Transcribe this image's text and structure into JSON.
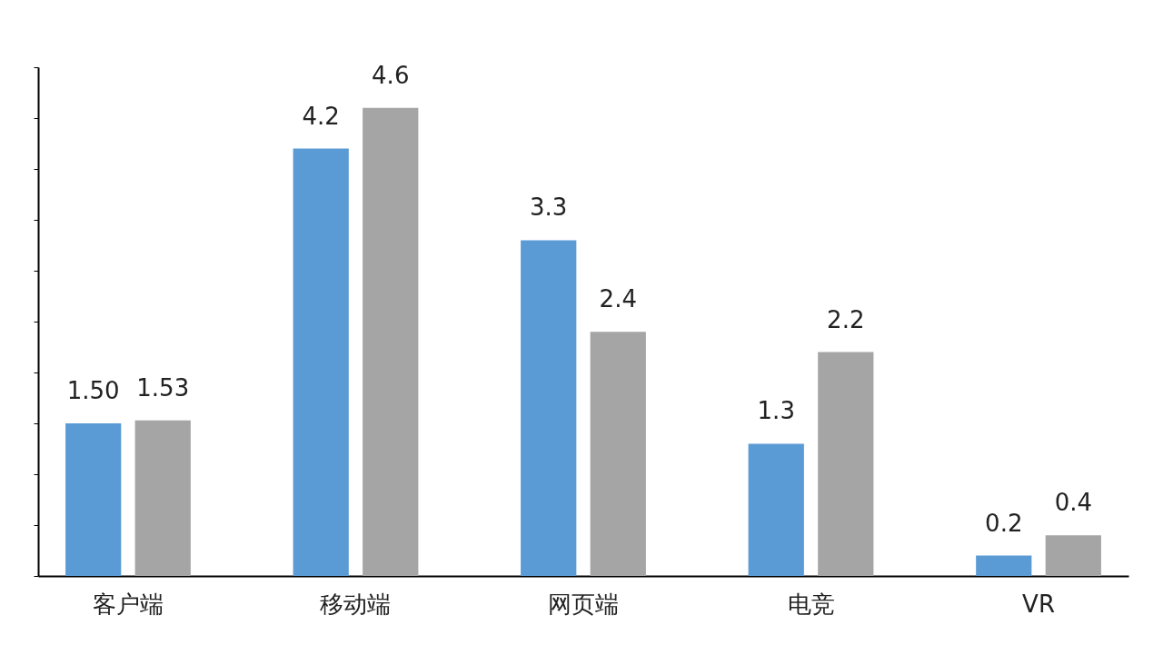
{
  "chart_data": {
    "type": "bar",
    "categories": [
      "客户端",
      "移动端",
      "网页端",
      "电竞",
      "VR"
    ],
    "series": [
      {
        "color": "#5b9bd5",
        "values": [
          1.5,
          4.2,
          3.3,
          1.3,
          0.2
        ],
        "value_labels": [
          "1.50",
          "4.2",
          "3.3",
          "1.3",
          "0.2"
        ]
      },
      {
        "color": "#a5a5a5",
        "values": [
          1.53,
          4.6,
          2.4,
          2.2,
          0.4
        ],
        "value_labels": [
          "1.53",
          "4.6",
          "2.4",
          "2.2",
          "0.4"
        ]
      }
    ],
    "tick_labels": "x"
  }
}
